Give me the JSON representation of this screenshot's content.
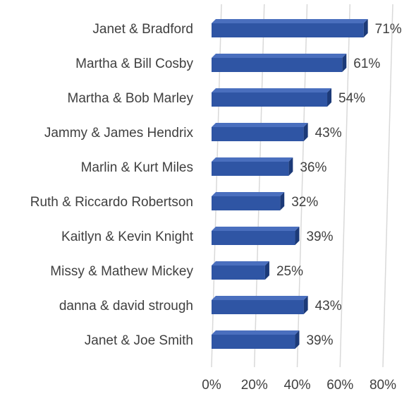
{
  "chart_data": {
    "type": "bar",
    "orientation": "horizontal",
    "style": "3d",
    "categories": [
      "Janet &  Bradford",
      "Martha & Bill Cosby",
      "Martha & Bob Marley",
      "Jammy & James Hendrix",
      "Marlin & Kurt Miles",
      "Ruth & Riccardo Robertson",
      "Kaitlyn & Kevin Knight",
      "Missy & Mathew Mickey",
      "danna & david strough",
      "Janet & Joe Smith"
    ],
    "values": [
      71,
      61,
      54,
      43,
      36,
      32,
      39,
      25,
      43,
      39
    ],
    "value_labels": [
      "71%",
      "61%",
      "54%",
      "43%",
      "36%",
      "32%",
      "39%",
      "25%",
      "43%",
      "39%"
    ],
    "xlim": [
      0,
      80
    ],
    "x_ticks": [
      0,
      20,
      40,
      60,
      80
    ],
    "x_tick_labels": [
      "0%",
      "20%",
      "40%",
      "60%",
      "80%"
    ],
    "grid": "vertical",
    "legend": "none",
    "colors": {
      "bar_front": "#2f55a4",
      "bar_top": "#4a6fbe",
      "bar_side": "#1c3a78",
      "grid": "#d9d9d9",
      "text": "#404040"
    }
  }
}
